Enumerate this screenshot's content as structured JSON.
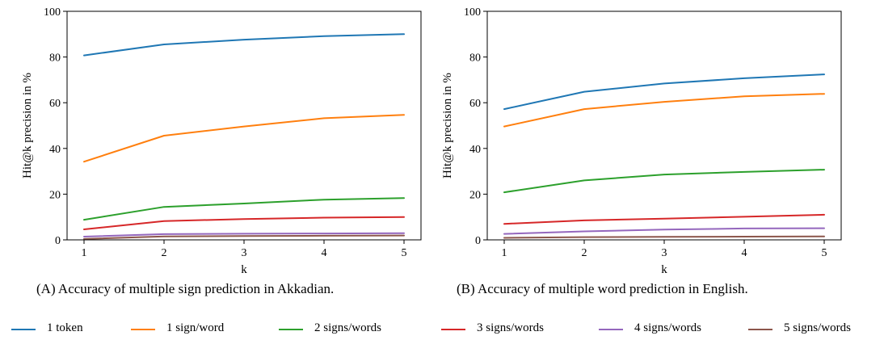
{
  "chart_data": [
    {
      "type": "line",
      "panel": "A",
      "caption": "(A) Accuracy of multiple sign prediction in Akkadian.",
      "xlabel": "k",
      "ylabel": "Hit@k precision in %",
      "x": [
        1,
        2,
        3,
        4,
        5
      ],
      "xticks": [
        "1",
        "2",
        "3",
        "4",
        "5"
      ],
      "yticks": [
        "0",
        "20",
        "40",
        "60",
        "80",
        "100"
      ],
      "ylim": [
        0,
        100
      ],
      "grid": false,
      "series": [
        {
          "name": "1 token",
          "color": "#1f77b4",
          "values": [
            80.7,
            85.5,
            87.6,
            89.1,
            90.0
          ]
        },
        {
          "name": "1 sign/word",
          "color": "#ff7f0e",
          "values": [
            34.2,
            45.6,
            49.6,
            53.2,
            54.7
          ]
        },
        {
          "name": "2 signs/words",
          "color": "#2ca02c",
          "values": [
            8.8,
            14.4,
            15.9,
            17.6,
            18.3
          ]
        },
        {
          "name": "3 signs/words",
          "color": "#d62728",
          "values": [
            4.6,
            8.2,
            9.1,
            9.7,
            10.0
          ]
        },
        {
          "name": "4 signs/words",
          "color": "#9467bd",
          "values": [
            1.4,
            2.5,
            2.7,
            2.8,
            2.9
          ]
        },
        {
          "name": "5 signs/words",
          "color": "#8c564b",
          "values": [
            0.4,
            1.5,
            1.7,
            1.8,
            1.9
          ]
        }
      ]
    },
    {
      "type": "line",
      "panel": "B",
      "caption": "(B) Accuracy of multiple word prediction in English.",
      "xlabel": "k",
      "ylabel": "Hit@k precision in %",
      "x": [
        1,
        2,
        3,
        4,
        5
      ],
      "xticks": [
        "1",
        "2",
        "3",
        "4",
        "5"
      ],
      "yticks": [
        "0",
        "20",
        "40",
        "60",
        "80",
        "100"
      ],
      "ylim": [
        0,
        100
      ],
      "grid": false,
      "series": [
        {
          "name": "1 token",
          "color": "#1f77b4",
          "values": [
            57.2,
            64.8,
            68.4,
            70.7,
            72.4
          ]
        },
        {
          "name": "1 sign/word",
          "color": "#ff7f0e",
          "values": [
            49.6,
            57.2,
            60.4,
            62.8,
            63.9
          ]
        },
        {
          "name": "2 signs/words",
          "color": "#2ca02c",
          "values": [
            20.8,
            26.0,
            28.6,
            29.7,
            30.7
          ]
        },
        {
          "name": "3 signs/words",
          "color": "#d62728",
          "values": [
            7.0,
            8.5,
            9.3,
            10.1,
            11.0
          ]
        },
        {
          "name": "4 signs/words",
          "color": "#9467bd",
          "values": [
            2.6,
            3.7,
            4.5,
            5.0,
            5.1
          ]
        },
        {
          "name": "5 signs/words",
          "color": "#8c564b",
          "values": [
            0.9,
            1.2,
            1.3,
            1.4,
            1.5
          ]
        }
      ]
    }
  ],
  "legend": {
    "placement": "bottom",
    "items": [
      {
        "label": "1 token",
        "color": "#1f77b4"
      },
      {
        "label": "1 sign/word",
        "color": "#ff7f0e"
      },
      {
        "label": "2 signs/words",
        "color": "#2ca02c"
      },
      {
        "label": "3 signs/words",
        "color": "#d62728"
      },
      {
        "label": "4 signs/words",
        "color": "#9467bd"
      },
      {
        "label": "5 signs/words",
        "color": "#8c564b"
      }
    ]
  }
}
